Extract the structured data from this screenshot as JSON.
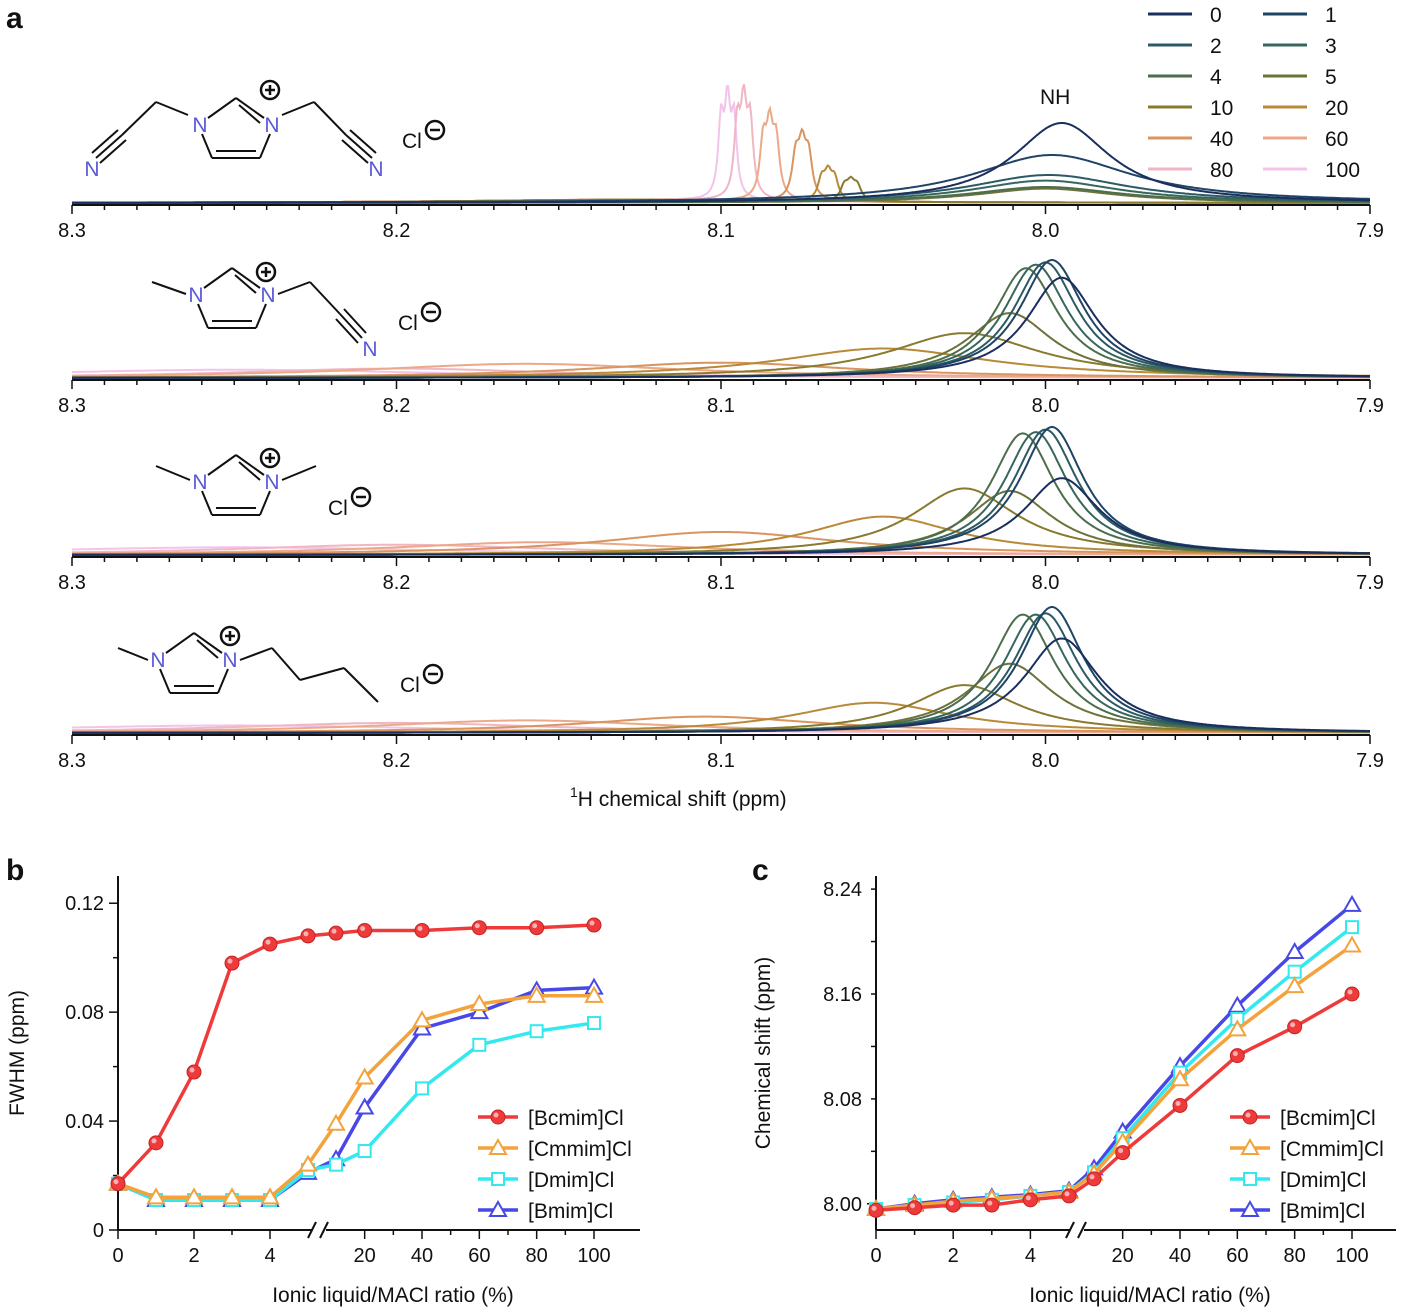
{
  "panel_labels": {
    "a": "a",
    "b": "b",
    "c": "c"
  },
  "chart_data": [
    {
      "type": "line",
      "panel": "a",
      "title": "",
      "xlabel_sup": "1",
      "xlabel": "H  chemical shift (ppm)",
      "peak_label": "NH",
      "xlim": [
        8.3,
        7.9
      ],
      "x_ticks": [
        "8.3",
        "8.2",
        "8.1",
        "8.0",
        "7.9"
      ],
      "legend": {
        "placement": "top-right",
        "entries": [
          "0",
          "1",
          "2",
          "3",
          "4",
          "5",
          "10",
          "20",
          "40",
          "60",
          "80",
          "100"
        ],
        "colors": [
          "#1b2f5e",
          "#1f4466",
          "#2b5a64",
          "#37675c",
          "#4d6e4c",
          "#6c7238",
          "#887a2e",
          "#b88a38",
          "#d99460",
          "#eca98a",
          "#f0b6c4",
          "#f2c4ea"
        ]
      },
      "spectra": [
        {
          "name": "[Bcmim]Cl",
          "label_cl": "Cl",
          "peak_centers": [
            7.995,
            7.998,
            7.999,
            8.0,
            8.0,
            8.0,
            8.06,
            8.067,
            8.075,
            8.085,
            8.093,
            8.098
          ],
          "peak_widths": [
            0.018,
            0.03,
            0.03,
            0.028,
            0.028,
            0.026,
            0.0014,
            0.0013,
            0.0013,
            0.0012,
            0.0011,
            0.001
          ],
          "peak_heights": [
            1.0,
            0.6,
            0.35,
            0.28,
            0.2,
            0.18,
            0.2,
            0.3,
            0.6,
            0.8,
            1.05,
            1.1
          ]
        },
        {
          "name": "[Cmmim]Cl",
          "label_cl": "Cl",
          "peak_centers": [
            7.995,
            7.998,
            8.0,
            8.003,
            8.006,
            8.011,
            8.025,
            8.05,
            8.1,
            8.16,
            8.2,
            8.25
          ],
          "peak_widths": [
            0.013,
            0.012,
            0.012,
            0.012,
            0.012,
            0.016,
            0.028,
            0.04,
            0.05,
            0.06,
            0.06,
            0.08
          ],
          "peak_heights": [
            0.85,
            1.0,
            0.98,
            0.96,
            0.93,
            0.55,
            0.38,
            0.25,
            0.13,
            0.12,
            0.08,
            0.07
          ]
        },
        {
          "name": "[Dmim]Cl",
          "label_cl": "Cl",
          "peak_centers": [
            7.995,
            7.998,
            8.0,
            8.003,
            8.007,
            8.011,
            8.025,
            8.05,
            8.1,
            8.155,
            8.2,
            8.25
          ],
          "peak_widths": [
            0.014,
            0.012,
            0.012,
            0.012,
            0.012,
            0.016,
            0.02,
            0.028,
            0.045,
            0.055,
            0.06,
            0.08
          ],
          "peak_heights": [
            0.6,
            1.0,
            0.98,
            0.96,
            0.95,
            0.5,
            0.52,
            0.3,
            0.18,
            0.1,
            0.08,
            0.06
          ]
        },
        {
          "name": "[Bmim]Cl",
          "label_cl": "Cl",
          "peak_centers": [
            7.995,
            7.998,
            8.0,
            8.003,
            8.007,
            8.011,
            8.025,
            8.053,
            8.105,
            8.16,
            8.2,
            8.25
          ],
          "peak_widths": [
            0.014,
            0.012,
            0.012,
            0.012,
            0.012,
            0.016,
            0.02,
            0.03,
            0.045,
            0.055,
            0.06,
            0.08
          ],
          "peak_heights": [
            0.75,
            1.0,
            0.95,
            0.94,
            0.94,
            0.55,
            0.38,
            0.24,
            0.13,
            0.1,
            0.08,
            0.06
          ]
        }
      ]
    },
    {
      "type": "line",
      "panel": "b",
      "xlabel": "Ionic liquid/MACl ratio (%)",
      "ylabel": "FWHM (ppm)",
      "ylim": [
        0,
        0.13
      ],
      "y_ticks": [
        "0",
        "0.04",
        "0.08",
        "0.12"
      ],
      "x_ticks": [
        "0",
        "2",
        "4",
        "20",
        "40",
        "60",
        "80",
        "100"
      ],
      "x": [
        0,
        1,
        2,
        3,
        4,
        5,
        10,
        20,
        40,
        60,
        80,
        100
      ],
      "series": [
        {
          "name": "[Bcmim]Cl",
          "marker": "circle",
          "color": "#ee3a3a",
          "values": [
            0.017,
            0.032,
            0.058,
            0.098,
            0.105,
            0.108,
            0.109,
            0.11,
            0.11,
            0.111,
            0.111,
            0.112
          ]
        },
        {
          "name": "[Cmmim]Cl",
          "marker": "triangle",
          "color": "#f4a23c",
          "values": [
            0.017,
            0.012,
            0.012,
            0.012,
            0.012,
            0.024,
            0.039,
            0.056,
            0.077,
            0.083,
            0.086,
            0.086
          ]
        },
        {
          "name": "[Dmim]Cl",
          "marker": "square",
          "color": "#33e8ee",
          "values": [
            0.017,
            0.011,
            0.011,
            0.011,
            0.011,
            0.022,
            0.024,
            0.029,
            0.052,
            0.068,
            0.073,
            0.076
          ]
        },
        {
          "name": "[Bmim]Cl",
          "marker": "triangle",
          "color": "#4848e6",
          "values": [
            0.017,
            0.011,
            0.011,
            0.011,
            0.011,
            0.021,
            0.026,
            0.045,
            0.074,
            0.08,
            0.088,
            0.089
          ]
        }
      ]
    },
    {
      "type": "line",
      "panel": "c",
      "xlabel": "Ionic liquid/MACl ratio (%)",
      "ylabel": "Chemical shift (ppm)",
      "ylim": [
        7.98,
        8.25
      ],
      "y_ticks": [
        "8.00",
        "8.08",
        "8.16",
        "8.24"
      ],
      "x_ticks": [
        "0",
        "2",
        "4",
        "20",
        "40",
        "60",
        "80",
        "100"
      ],
      "x": [
        0,
        1,
        2,
        3,
        4,
        5,
        10,
        20,
        40,
        60,
        80,
        100
      ],
      "series": [
        {
          "name": "[Bcmim]Cl",
          "marker": "circle",
          "color": "#ee3a3a",
          "values": [
            7.995,
            7.997,
            7.999,
            7.999,
            8.003,
            8.006,
            8.019,
            8.039,
            8.075,
            8.113,
            8.135,
            8.16
          ]
        },
        {
          "name": "[Cmmim]Cl",
          "marker": "triangle",
          "color": "#f4a23c",
          "values": [
            7.996,
            7.999,
            8.002,
            8.004,
            8.006,
            8.009,
            8.023,
            8.047,
            8.095,
            8.133,
            8.166,
            8.197
          ]
        },
        {
          "name": "[Dmim]Cl",
          "marker": "square",
          "color": "#33e8ee",
          "values": [
            7.996,
            7.999,
            8.001,
            8.003,
            8.006,
            8.009,
            8.024,
            8.05,
            8.1,
            8.141,
            8.177,
            8.211
          ]
        },
        {
          "name": "[Bmim]Cl",
          "marker": "triangle",
          "color": "#4848e6",
          "values": [
            7.996,
            8.0,
            8.003,
            8.005,
            8.007,
            8.01,
            8.027,
            8.055,
            8.105,
            8.151,
            8.192,
            8.228
          ]
        }
      ]
    }
  ],
  "chem_labels": {
    "N": "N",
    "plus": "+",
    "minus": "−"
  }
}
